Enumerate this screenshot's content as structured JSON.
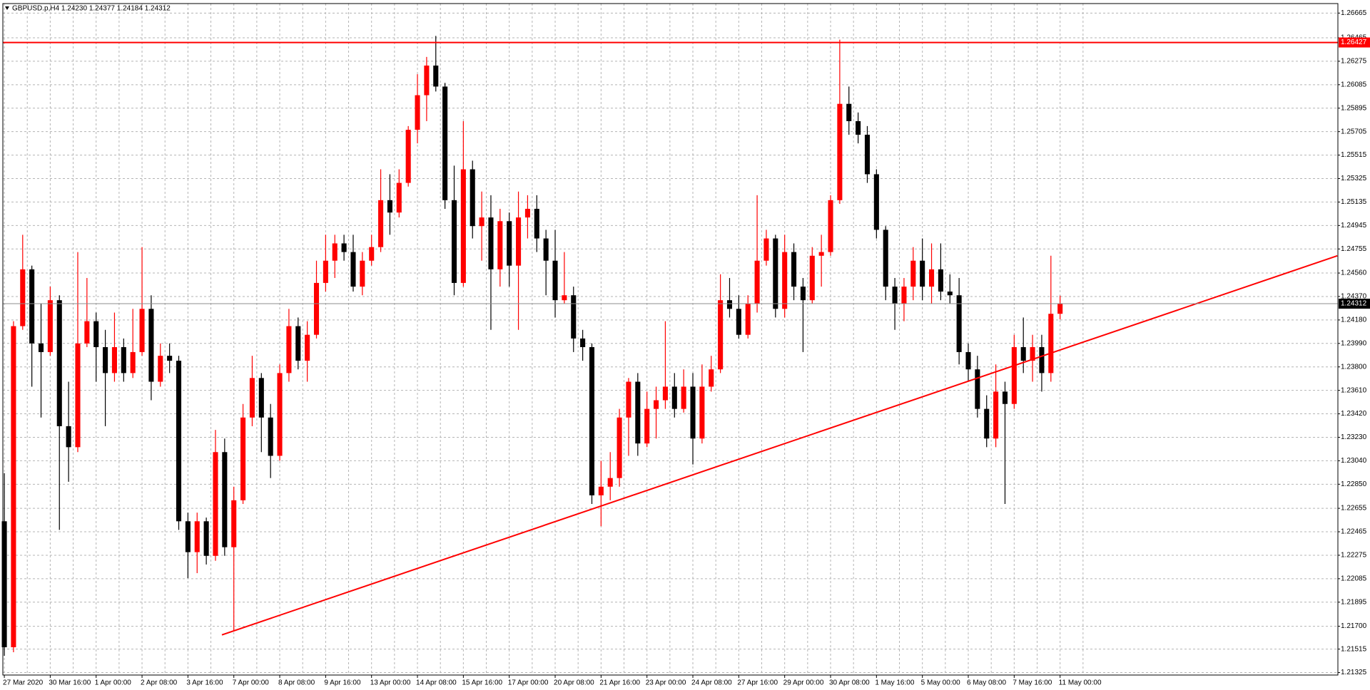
{
  "chart_data": {
    "type": "candlestick",
    "title": "GBPUSD.p,H4  1.24230 1.24377 1.24184 1.24312",
    "categories": [
      "27 Mar 2020",
      null,
      null,
      null,
      null,
      "30 Mar 16:00",
      null,
      null,
      null,
      null,
      "1 Apr 00:00",
      null,
      null,
      null,
      null,
      "2 Apr 08:00",
      null,
      null,
      null,
      null,
      "3 Apr 16:00",
      null,
      null,
      null,
      null,
      "7 Apr 00:00",
      null,
      null,
      null,
      null,
      "8 Apr 08:00",
      null,
      null,
      null,
      null,
      "9 Apr 16:00",
      null,
      null,
      null,
      null,
      "13 Apr 00:00",
      null,
      null,
      null,
      null,
      "14 Apr 08:00",
      null,
      null,
      null,
      null,
      "15 Apr 16:00",
      null,
      null,
      null,
      null,
      "17 Apr 00:00",
      null,
      null,
      null,
      null,
      "20 Apr 08:00",
      null,
      null,
      null,
      null,
      "21 Apr 16:00",
      null,
      null,
      null,
      null,
      "23 Apr 00:00",
      null,
      null,
      null,
      null,
      "24 Apr 08:00",
      null,
      null,
      null,
      null,
      "27 Apr 16:00",
      null,
      null,
      null,
      null,
      "29 Apr 00:00",
      null,
      null,
      null,
      null,
      "30 Apr 08:00",
      null,
      null,
      null,
      null,
      "1 May 16:00",
      null,
      null,
      null,
      null,
      "5 May 00:00",
      null,
      null,
      null,
      null,
      "6 May 08:00",
      null,
      null,
      null,
      null,
      "7 May 16:00",
      null,
      null,
      null,
      null,
      "11 May 00:00"
    ],
    "candles": [
      [
        1.2255,
        1.2294,
        1.2146,
        1.2153
      ],
      [
        1.2153,
        1.2417,
        1.2149,
        1.2413
      ],
      [
        1.2413,
        1.2487,
        1.241,
        1.2459
      ],
      [
        1.2459,
        1.2462,
        1.2364,
        1.2399
      ],
      [
        1.2399,
        1.2431,
        1.2339,
        1.2392
      ],
      [
        1.2392,
        1.2445,
        1.2389,
        1.2434
      ],
      [
        1.2434,
        1.2438,
        1.2248,
        1.2332
      ],
      [
        1.2332,
        1.2368,
        1.2287,
        1.2315
      ],
      [
        1.2315,
        1.2473,
        1.2311,
        1.2399
      ],
      [
        1.2399,
        1.2452,
        1.2396,
        1.2417
      ],
      [
        1.2417,
        1.2424,
        1.2368,
        1.2396
      ],
      [
        1.2396,
        1.241,
        1.2332,
        1.2375
      ],
      [
        1.2375,
        1.2424,
        1.2368,
        1.2396
      ],
      [
        1.2396,
        1.2403,
        1.2368,
        1.2375
      ],
      [
        1.2375,
        1.2427,
        1.2371,
        1.2392
      ],
      [
        1.2392,
        1.2477,
        1.2389,
        1.2427
      ],
      [
        1.2427,
        1.2438,
        1.2353,
        1.2368
      ],
      [
        1.2368,
        1.2399,
        1.2364,
        1.2389
      ],
      [
        1.2389,
        1.2399,
        1.2375,
        1.2385
      ],
      [
        1.2385,
        1.2389,
        1.2248,
        1.2255
      ],
      [
        1.2255,
        1.2262,
        1.2209,
        1.223
      ],
      [
        1.223,
        1.2262,
        1.2213,
        1.2255
      ],
      [
        1.2255,
        1.2258,
        1.222,
        1.2227
      ],
      [
        1.2227,
        1.2329,
        1.2223,
        1.2311
      ],
      [
        1.2311,
        1.2322,
        1.2227,
        1.2234
      ],
      [
        1.2234,
        1.2283,
        1.2166,
        1.2272
      ],
      [
        1.2272,
        1.235,
        1.2269,
        1.2339
      ],
      [
        1.2339,
        1.2389,
        1.2332,
        1.2371
      ],
      [
        1.2371,
        1.2375,
        1.2311,
        1.2339
      ],
      [
        1.2339,
        1.235,
        1.229,
        1.2308
      ],
      [
        1.2308,
        1.2382,
        1.2304,
        1.2375
      ],
      [
        1.2375,
        1.2427,
        1.2368,
        1.2413
      ],
      [
        1.2413,
        1.242,
        1.2378,
        1.2385
      ],
      [
        1.2385,
        1.2417,
        1.2368,
        1.2406
      ],
      [
        1.2406,
        1.2466,
        1.2403,
        1.2448
      ],
      [
        1.2448,
        1.2487,
        1.2441,
        1.2466
      ],
      [
        1.2466,
        1.2487,
        1.2452,
        1.248
      ],
      [
        1.248,
        1.2487,
        1.2466,
        1.2473
      ],
      [
        1.2473,
        1.2487,
        1.2441,
        1.2445
      ],
      [
        1.2445,
        1.2473,
        1.2438,
        1.2466
      ],
      [
        1.2466,
        1.2487,
        1.2462,
        1.2477
      ],
      [
        1.2477,
        1.254,
        1.2473,
        1.2515
      ],
      [
        1.2515,
        1.2536,
        1.2487,
        1.2505
      ],
      [
        1.2505,
        1.254,
        1.2501,
        1.2529
      ],
      [
        1.2529,
        1.2575,
        1.2526,
        1.2572
      ],
      [
        1.2572,
        1.2617,
        1.2561,
        1.26
      ],
      [
        1.26,
        1.2631,
        1.2579,
        1.2624
      ],
      [
        1.2624,
        1.2648,
        1.2603,
        1.2607
      ],
      [
        1.2607,
        1.261,
        1.2508,
        1.2515
      ],
      [
        1.2515,
        1.2543,
        1.2438,
        1.2448
      ],
      [
        1.2448,
        1.2579,
        1.2445,
        1.254
      ],
      [
        1.254,
        1.2547,
        1.2484,
        1.2494
      ],
      [
        1.2494,
        1.2522,
        1.2466,
        1.2501
      ],
      [
        1.2501,
        1.2519,
        1.241,
        1.2459
      ],
      [
        1.2459,
        1.2508,
        1.2445,
        1.2498
      ],
      [
        1.2498,
        1.2505,
        1.2445,
        1.2462
      ],
      [
        1.2462,
        1.2522,
        1.241,
        1.2501
      ],
      [
        1.2501,
        1.2519,
        1.2484,
        1.2508
      ],
      [
        1.2508,
        1.2519,
        1.2473,
        1.2484
      ],
      [
        1.2484,
        1.2491,
        1.2438,
        1.2466
      ],
      [
        1.2466,
        1.2491,
        1.242,
        1.2434
      ],
      [
        1.2434,
        1.2473,
        1.2431,
        1.2438
      ],
      [
        1.2438,
        1.2445,
        1.2392,
        1.2403
      ],
      [
        1.2403,
        1.241,
        1.2385,
        1.2396
      ],
      [
        1.2396,
        1.2399,
        1.2269,
        1.2276
      ],
      [
        1.2276,
        1.2304,
        1.2251,
        1.2283
      ],
      [
        1.2283,
        1.2311,
        1.2272,
        1.229
      ],
      [
        1.229,
        1.2346,
        1.2283,
        1.2339
      ],
      [
        1.2339,
        1.2371,
        1.2308,
        1.2368
      ],
      [
        1.2368,
        1.2375,
        1.2308,
        1.2318
      ],
      [
        1.2318,
        1.236,
        1.2315,
        1.2346
      ],
      [
        1.2346,
        1.2364,
        1.2322,
        1.2353
      ],
      [
        1.2353,
        1.2417,
        1.2346,
        1.2364
      ],
      [
        1.2364,
        1.2375,
        1.2339,
        1.2346
      ],
      [
        1.2346,
        1.2378,
        1.2343,
        1.2364
      ],
      [
        1.2364,
        1.2375,
        1.2301,
        1.2322
      ],
      [
        1.2322,
        1.2382,
        1.2318,
        1.2364
      ],
      [
        1.2364,
        1.2389,
        1.236,
        1.2378
      ],
      [
        1.2378,
        1.2455,
        1.2375,
        1.2434
      ],
      [
        1.2434,
        1.2452,
        1.242,
        1.2427
      ],
      [
        1.2427,
        1.2438,
        1.2403,
        1.2406
      ],
      [
        1.2406,
        1.2438,
        1.2403,
        1.2431
      ],
      [
        1.2431,
        1.2519,
        1.2424,
        1.2466
      ],
      [
        1.2466,
        1.2491,
        1.2462,
        1.2484
      ],
      [
        1.2484,
        1.2487,
        1.242,
        1.2427
      ],
      [
        1.2427,
        1.2487,
        1.242,
        1.2473
      ],
      [
        1.2473,
        1.248,
        1.2434,
        1.2445
      ],
      [
        1.2445,
        1.2452,
        1.2392,
        1.2434
      ],
      [
        1.2434,
        1.2477,
        1.2431,
        1.247
      ],
      [
        1.247,
        1.2487,
        1.2445,
        1.2473
      ],
      [
        1.2473,
        1.2519,
        1.247,
        1.2515
      ],
      [
        1.2515,
        1.2645,
        1.2512,
        1.2593
      ],
      [
        1.2593,
        1.2607,
        1.2568,
        1.2579
      ],
      [
        1.2579,
        1.2586,
        1.2561,
        1.2568
      ],
      [
        1.2568,
        1.2575,
        1.2529,
        1.2536
      ],
      [
        1.2536,
        1.254,
        1.2484,
        1.2491
      ],
      [
        1.2491,
        1.2494,
        1.2434,
        1.2445
      ],
      [
        1.2445,
        1.2452,
        1.241,
        1.2431
      ],
      [
        1.2431,
        1.2452,
        1.2417,
        1.2445
      ],
      [
        1.2445,
        1.2477,
        1.2434,
        1.2466
      ],
      [
        1.2466,
        1.2484,
        1.2434,
        1.2445
      ],
      [
        1.2445,
        1.248,
        1.2431,
        1.2459
      ],
      [
        1.2459,
        1.248,
        1.2434,
        1.2441
      ],
      [
        1.2441,
        1.2455,
        1.2431,
        1.2438
      ],
      [
        1.2438,
        1.2452,
        1.2382,
        1.2392
      ],
      [
        1.2392,
        1.2399,
        1.2368,
        1.2378
      ],
      [
        1.2378,
        1.2389,
        1.2339,
        1.2346
      ],
      [
        1.2346,
        1.2357,
        1.2315,
        1.2322
      ],
      [
        1.2322,
        1.2382,
        1.2315,
        1.236
      ],
      [
        1.236,
        1.2368,
        1.2269,
        1.235
      ],
      [
        1.235,
        1.2406,
        1.2346,
        1.2396
      ],
      [
        1.2396,
        1.242,
        1.2375,
        1.2385
      ],
      [
        1.2385,
        1.2406,
        1.2368,
        1.2396
      ],
      [
        1.2396,
        1.2406,
        1.236,
        1.2375
      ],
      [
        1.2375,
        1.247,
        1.2368,
        1.2423
      ],
      [
        1.2423,
        1.24377,
        1.24184,
        1.24312
      ]
    ],
    "up_color": "#ff0000",
    "down_color": "#000000",
    "xlim": [
      -0.16,
      145.26
    ],
    "ylim": [
      1.21305,
      1.26742
    ],
    "yticks": [
      1.26665,
      1.26465,
      1.26275,
      1.26085,
      1.25895,
      1.25705,
      1.25515,
      1.25325,
      1.25135,
      1.24945,
      1.24755,
      {
        "value": 1.2456,
        "label": "1.24560"
      },
      {
        "value": 1.2437,
        "label": "1.24370"
      },
      {
        "value": 1.2418,
        "label": "1.24180"
      },
      {
        "value": 1.2399,
        "label": "1.23990"
      },
      {
        "value": 1.238,
        "label": "1.23800"
      },
      {
        "value": 1.2361,
        "label": "1.23610"
      },
      {
        "value": 1.2342,
        "label": "1.23420"
      },
      {
        "value": 1.2323,
        "label": "1.23230"
      },
      {
        "value": 1.2304,
        "label": "1.23040"
      },
      {
        "value": 1.2285,
        "label": "1.22850"
      },
      1.22655,
      1.22465,
      1.22275,
      1.22085,
      1.21895,
      {
        "value": 1.217,
        "label": "1.21700"
      },
      1.21515,
      1.21325
    ],
    "grid": true,
    "hline": {
      "value": 1.26427,
      "color": "#ff0000"
    },
    "current_price": {
      "value": 1.24312,
      "color": "#8c8c8c"
    },
    "trendline": {
      "color": "#ff0000",
      "points": [
        [
          23.7,
          1.2163
        ],
        [
          145.2,
          1.247
        ]
      ]
    }
  }
}
